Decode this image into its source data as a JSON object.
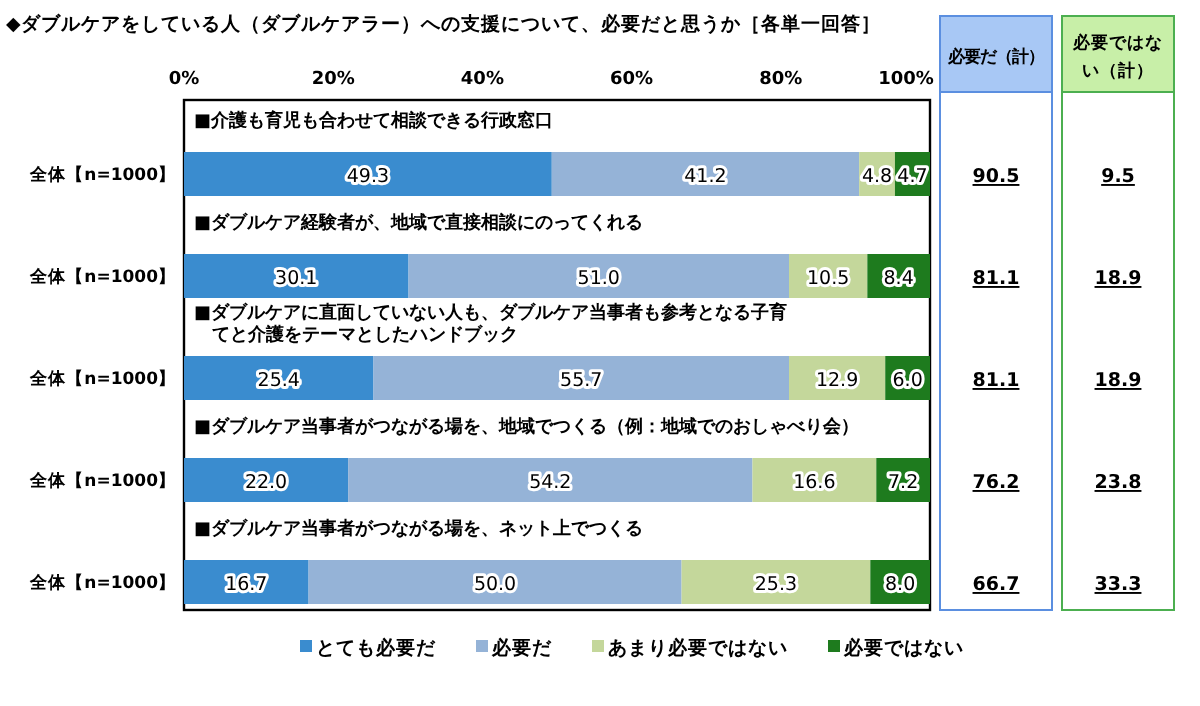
{
  "chart_data": {
    "type": "bar",
    "orientation": "horizontal",
    "stacked": true,
    "legend": "bottom",
    "title": "◆ダブルケアをしている人（ダブルケアラー）への支援について、必要だと思うか［各単一回答］",
    "categories": [
      "全体【n=1000】",
      "全体【n=1000】",
      "全体【n=1000】",
      "全体【n=1000】",
      "全体【n=1000】"
    ],
    "xlim": [
      0,
      100
    ],
    "xticks": [
      {
        "value": 0,
        "label": "0%"
      },
      {
        "value": 20,
        "label": "20%"
      },
      {
        "value": 40,
        "label": "40%"
      },
      {
        "value": 60,
        "label": "60%"
      },
      {
        "value": 80,
        "label": "80%"
      },
      {
        "value": 100,
        "label": "100%"
      }
    ],
    "series": [
      {
        "name": "とても必要だ",
        "color": "#3a8ccf",
        "values": [
          49.3,
          30.1,
          25.4,
          22.0,
          16.7
        ],
        "value_labels": [
          "49.3",
          "30.1",
          "25.4",
          "22.0",
          "16.7"
        ]
      },
      {
        "name": "必要だ",
        "color": "#95b3d7",
        "values": [
          41.2,
          51.0,
          55.7,
          54.2,
          50.0
        ],
        "value_labels": [
          "41.2",
          "51.0",
          "55.7",
          "54.2",
          "50.0"
        ]
      },
      {
        "name": "あまり必要ではない",
        "color": "#c4d79b",
        "values": [
          4.8,
          10.5,
          12.9,
          16.6,
          25.3
        ],
        "value_labels": [
          "4.8",
          "10.5",
          "12.9",
          "16.6",
          "25.3"
        ]
      },
      {
        "name": "必要ではない",
        "color": "#1e7b1e",
        "values": [
          4.7,
          8.4,
          6.0,
          7.2,
          8.0
        ],
        "value_labels": [
          "4.7",
          "8.4",
          "6.0",
          "7.2",
          "8.0"
        ]
      }
    ],
    "annotations": [
      "■介護も育児も合わせて相談できる行政窓口",
      "■ダブルケア経験者が、地域で直接相談にのってくれる",
      "■ダブルケアに直面していない人も、ダブルケア当事者も参考となる子育てと介護をテーマとしたハンドブック",
      "■ダブルケア当事者がつながる場を、地域でつくる（例：地域でのおしゃべり会）",
      "■ダブルケア当事者がつながる場を、ネット上でつくる",
      "必要だ（計）",
      "必要ではない（計）",
      "90.5",
      "9.5",
      "81.1",
      "18.9",
      "81.1",
      "18.9",
      "76.2",
      "23.8",
      "66.7",
      "33.3"
    ]
  }
}
